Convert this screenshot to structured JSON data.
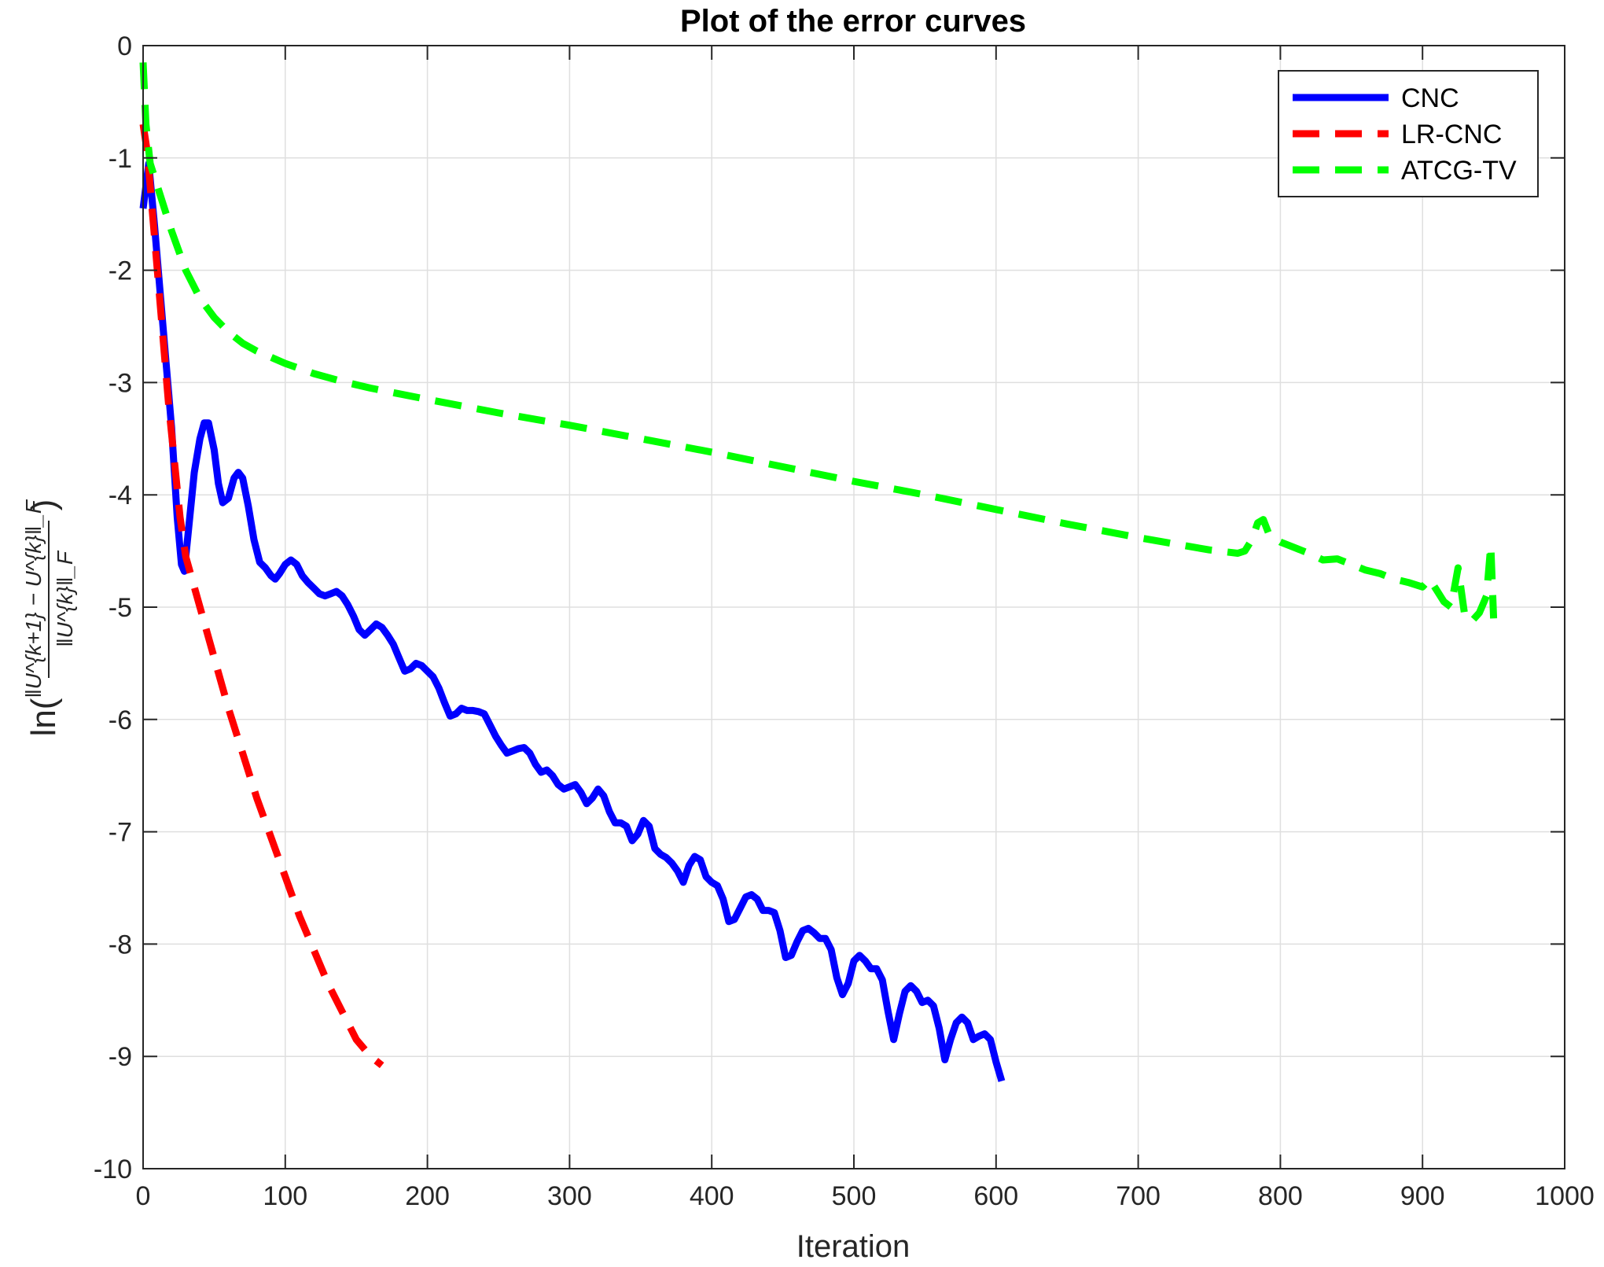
{
  "chart_data": {
    "type": "line",
    "title": "Plot of the error curves",
    "xlabel": "Iteration",
    "ylabel": {
      "prefix": "ln(",
      "numerator": "‖U^{k+1} − U^{k}‖_F",
      "denominator": "‖U^{k}‖_F",
      "suffix": ")"
    },
    "xlim": [
      0,
      1000
    ],
    "ylim": [
      -10,
      0
    ],
    "xticks": [
      0,
      100,
      200,
      300,
      400,
      500,
      600,
      700,
      800,
      900,
      1000
    ],
    "yticks": [
      0,
      -1,
      -2,
      -3,
      -4,
      -5,
      -6,
      -7,
      -8,
      -9,
      -10
    ],
    "grid": true,
    "legend_position": "top-right",
    "series": [
      {
        "name": "CNC",
        "color": "#0000ff",
        "style": "solid",
        "points": [
          [
            0,
            -1.45
          ],
          [
            4,
            -1.05
          ],
          [
            8,
            -1.6
          ],
          [
            12,
            -2.2
          ],
          [
            16,
            -2.8
          ],
          [
            20,
            -3.4
          ],
          [
            24,
            -4.2
          ],
          [
            27,
            -4.62
          ],
          [
            29,
            -4.68
          ],
          [
            32,
            -4.3
          ],
          [
            36,
            -3.8
          ],
          [
            40,
            -3.5
          ],
          [
            43,
            -3.36
          ],
          [
            46,
            -3.36
          ],
          [
            50,
            -3.6
          ],
          [
            53,
            -3.9
          ],
          [
            56,
            -4.07
          ],
          [
            60,
            -4.03
          ],
          [
            64,
            -3.85
          ],
          [
            67,
            -3.8
          ],
          [
            70,
            -3.85
          ],
          [
            74,
            -4.1
          ],
          [
            78,
            -4.4
          ],
          [
            82,
            -4.6
          ],
          [
            86,
            -4.65
          ],
          [
            90,
            -4.72
          ],
          [
            93,
            -4.75
          ],
          [
            96,
            -4.7
          ],
          [
            100,
            -4.62
          ],
          [
            104,
            -4.58
          ],
          [
            108,
            -4.62
          ],
          [
            112,
            -4.72
          ],
          [
            116,
            -4.78
          ],
          [
            120,
            -4.83
          ],
          [
            124,
            -4.88
          ],
          [
            128,
            -4.9
          ],
          [
            132,
            -4.88
          ],
          [
            136,
            -4.86
          ],
          [
            140,
            -4.9
          ],
          [
            144,
            -4.98
          ],
          [
            148,
            -5.08
          ],
          [
            152,
            -5.2
          ],
          [
            156,
            -5.25
          ],
          [
            160,
            -5.2
          ],
          [
            164,
            -5.15
          ],
          [
            168,
            -5.18
          ],
          [
            172,
            -5.25
          ],
          [
            176,
            -5.33
          ],
          [
            180,
            -5.45
          ],
          [
            184,
            -5.57
          ],
          [
            188,
            -5.55
          ],
          [
            192,
            -5.5
          ],
          [
            196,
            -5.52
          ],
          [
            200,
            -5.57
          ],
          [
            204,
            -5.62
          ],
          [
            208,
            -5.72
          ],
          [
            212,
            -5.85
          ],
          [
            216,
            -5.97
          ],
          [
            220,
            -5.95
          ],
          [
            224,
            -5.9
          ],
          [
            228,
            -5.92
          ],
          [
            232,
            -5.92
          ],
          [
            236,
            -5.93
          ],
          [
            240,
            -5.95
          ],
          [
            244,
            -6.05
          ],
          [
            248,
            -6.15
          ],
          [
            252,
            -6.23
          ],
          [
            256,
            -6.3
          ],
          [
            260,
            -6.28
          ],
          [
            264,
            -6.26
          ],
          [
            268,
            -6.25
          ],
          [
            272,
            -6.3
          ],
          [
            276,
            -6.4
          ],
          [
            280,
            -6.47
          ],
          [
            284,
            -6.45
          ],
          [
            288,
            -6.5
          ],
          [
            292,
            -6.58
          ],
          [
            296,
            -6.62
          ],
          [
            300,
            -6.6
          ],
          [
            304,
            -6.58
          ],
          [
            308,
            -6.65
          ],
          [
            312,
            -6.75
          ],
          [
            316,
            -6.7
          ],
          [
            320,
            -6.62
          ],
          [
            324,
            -6.68
          ],
          [
            328,
            -6.82
          ],
          [
            332,
            -6.92
          ],
          [
            336,
            -6.92
          ],
          [
            340,
            -6.95
          ],
          [
            344,
            -7.08
          ],
          [
            348,
            -7.02
          ],
          [
            352,
            -6.9
          ],
          [
            356,
            -6.95
          ],
          [
            360,
            -7.15
          ],
          [
            364,
            -7.2
          ],
          [
            368,
            -7.23
          ],
          [
            372,
            -7.28
          ],
          [
            376,
            -7.35
          ],
          [
            380,
            -7.45
          ],
          [
            384,
            -7.3
          ],
          [
            388,
            -7.22
          ],
          [
            392,
            -7.25
          ],
          [
            396,
            -7.4
          ],
          [
            400,
            -7.45
          ],
          [
            404,
            -7.48
          ],
          [
            408,
            -7.6
          ],
          [
            412,
            -7.8
          ],
          [
            416,
            -7.78
          ],
          [
            420,
            -7.68
          ],
          [
            424,
            -7.58
          ],
          [
            428,
            -7.56
          ],
          [
            432,
            -7.6
          ],
          [
            436,
            -7.7
          ],
          [
            440,
            -7.7
          ],
          [
            444,
            -7.72
          ],
          [
            448,
            -7.88
          ],
          [
            452,
            -8.12
          ],
          [
            456,
            -8.1
          ],
          [
            460,
            -7.98
          ],
          [
            464,
            -7.88
          ],
          [
            468,
            -7.86
          ],
          [
            472,
            -7.9
          ],
          [
            476,
            -7.95
          ],
          [
            480,
            -7.95
          ],
          [
            484,
            -8.05
          ],
          [
            488,
            -8.3
          ],
          [
            492,
            -8.45
          ],
          [
            496,
            -8.35
          ],
          [
            500,
            -8.15
          ],
          [
            504,
            -8.1
          ],
          [
            508,
            -8.15
          ],
          [
            512,
            -8.22
          ],
          [
            516,
            -8.22
          ],
          [
            520,
            -8.32
          ],
          [
            524,
            -8.6
          ],
          [
            528,
            -8.85
          ],
          [
            532,
            -8.62
          ],
          [
            536,
            -8.42
          ],
          [
            540,
            -8.37
          ],
          [
            544,
            -8.42
          ],
          [
            548,
            -8.52
          ],
          [
            552,
            -8.5
          ],
          [
            556,
            -8.55
          ],
          [
            560,
            -8.75
          ],
          [
            564,
            -9.03
          ],
          [
            568,
            -8.85
          ],
          [
            572,
            -8.7
          ],
          [
            576,
            -8.65
          ],
          [
            580,
            -8.7
          ],
          [
            584,
            -8.85
          ],
          [
            588,
            -8.82
          ],
          [
            592,
            -8.8
          ],
          [
            596,
            -8.85
          ],
          [
            600,
            -9.05
          ],
          [
            604,
            -9.22
          ]
        ]
      },
      {
        "name": "LR-CNC",
        "color": "#ff0000",
        "style": "dashed",
        "points": [
          [
            0,
            -0.7
          ],
          [
            3,
            -0.95
          ],
          [
            6,
            -1.4
          ],
          [
            10,
            -2.0
          ],
          [
            14,
            -2.6
          ],
          [
            18,
            -3.2
          ],
          [
            22,
            -3.7
          ],
          [
            26,
            -4.2
          ],
          [
            30,
            -4.55
          ],
          [
            40,
            -5.0
          ],
          [
            50,
            -5.45
          ],
          [
            60,
            -5.9
          ],
          [
            70,
            -6.3
          ],
          [
            80,
            -6.7
          ],
          [
            90,
            -7.05
          ],
          [
            100,
            -7.4
          ],
          [
            110,
            -7.75
          ],
          [
            120,
            -8.05
          ],
          [
            130,
            -8.35
          ],
          [
            140,
            -8.6
          ],
          [
            150,
            -8.85
          ],
          [
            160,
            -9.0
          ],
          [
            168,
            -9.08
          ]
        ]
      },
      {
        "name": "ATCG-TV",
        "color": "#00ff00",
        "style": "dashed",
        "points": [
          [
            0,
            -0.15
          ],
          [
            2,
            -0.7
          ],
          [
            5,
            -1.05
          ],
          [
            10,
            -1.25
          ],
          [
            20,
            -1.65
          ],
          [
            30,
            -2.0
          ],
          [
            40,
            -2.25
          ],
          [
            50,
            -2.42
          ],
          [
            60,
            -2.55
          ],
          [
            70,
            -2.65
          ],
          [
            80,
            -2.72
          ],
          [
            100,
            -2.83
          ],
          [
            120,
            -2.92
          ],
          [
            140,
            -2.99
          ],
          [
            160,
            -3.05
          ],
          [
            180,
            -3.1
          ],
          [
            200,
            -3.15
          ],
          [
            250,
            -3.27
          ],
          [
            300,
            -3.38
          ],
          [
            350,
            -3.5
          ],
          [
            400,
            -3.62
          ],
          [
            450,
            -3.75
          ],
          [
            500,
            -3.88
          ],
          [
            550,
            -4.0
          ],
          [
            600,
            -4.13
          ],
          [
            650,
            -4.26
          ],
          [
            700,
            -4.38
          ],
          [
            750,
            -4.49
          ],
          [
            770,
            -4.52
          ],
          [
            775,
            -4.5
          ],
          [
            780,
            -4.4
          ],
          [
            784,
            -4.25
          ],
          [
            788,
            -4.22
          ],
          [
            792,
            -4.35
          ],
          [
            800,
            -4.42
          ],
          [
            810,
            -4.47
          ],
          [
            820,
            -4.52
          ],
          [
            830,
            -4.58
          ],
          [
            840,
            -4.57
          ],
          [
            850,
            -4.62
          ],
          [
            860,
            -4.67
          ],
          [
            870,
            -4.7
          ],
          [
            880,
            -4.75
          ],
          [
            890,
            -4.78
          ],
          [
            900,
            -4.82
          ],
          [
            905,
            -4.75
          ],
          [
            910,
            -4.85
          ],
          [
            915,
            -4.95
          ],
          [
            920,
            -5.0
          ],
          [
            925,
            -4.65
          ],
          [
            930,
            -5.1
          ],
          [
            935,
            -5.12
          ],
          [
            940,
            -5.05
          ],
          [
            945,
            -4.9
          ],
          [
            948,
            -4.45
          ],
          [
            950,
            -5.1
          ]
        ]
      }
    ]
  }
}
